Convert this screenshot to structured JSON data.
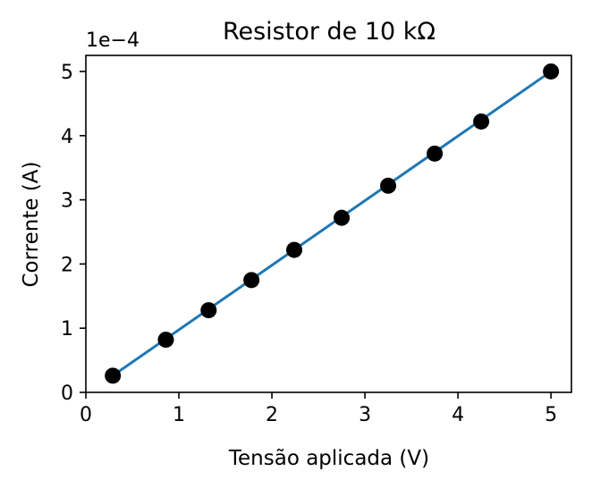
{
  "chart_data": {
    "type": "scatter",
    "title": "Resistor de 10 kΩ",
    "xlabel": "Tensão aplicada (V)",
    "ylabel": "Corrente (A)",
    "y_offset_label": "1e−4",
    "y_scale_factor": 0.0001,
    "xlim": [
      0,
      5.22
    ],
    "ylim": [
      0,
      0.000525
    ],
    "grid": false,
    "xticks": [
      0,
      1,
      2,
      3,
      4,
      5
    ],
    "xtick_labels": [
      "0",
      "1",
      "2",
      "3",
      "4",
      "5"
    ],
    "yticks": [
      0,
      0.0001,
      0.0002,
      0.0003,
      0.0004,
      0.0005
    ],
    "ytick_labels": [
      "0",
      "1",
      "2",
      "3",
      "4",
      "5"
    ],
    "series": [
      {
        "kind": "points",
        "color": "#000000",
        "x": [
          0.29,
          0.86,
          1.32,
          1.78,
          2.24,
          2.75,
          3.25,
          3.75,
          4.25,
          5.0
        ],
        "y": [
          2.6e-05,
          8.2e-05,
          0.000128,
          0.000175,
          0.000222,
          0.000272,
          0.000322,
          0.000372,
          0.000422,
          0.0005
        ]
      },
      {
        "kind": "line",
        "color": "#1f77b4",
        "x": [
          0.29,
          5.0
        ],
        "y": [
          2.6e-05,
          0.0005
        ]
      }
    ]
  }
}
